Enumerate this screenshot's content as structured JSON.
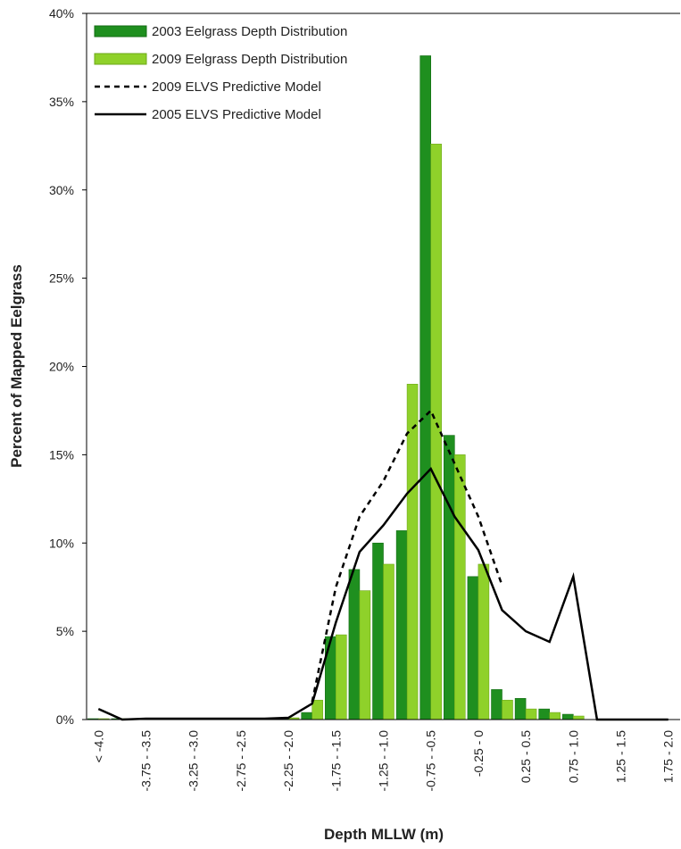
{
  "chart_data": {
    "type": "bar",
    "x_label": "Depth MLLW (m)",
    "y_label": "Percent of Mapped Eelgrass",
    "categories": [
      "< -4.0",
      null,
      "-3.75 - -3.5",
      null,
      "-3.25 - -3.0",
      null,
      "-2.75 - -2.5",
      null,
      "-2.25 - -2.0",
      null,
      "-1.75 - -1.5",
      null,
      "-1.25 - -1.0",
      null,
      "-0.75 - -0.5",
      null,
      "-0.25 - 0",
      null,
      "0.25 - 0.5",
      null,
      "0.75 - 1.0",
      null,
      "1.25 - 1.5",
      null,
      "1.75 - 2.0"
    ],
    "series": [
      {
        "name": "2003 Eelgrass Depth Distribution",
        "kind": "bar",
        "color": "#1f8f1f",
        "values": [
          0.05,
          0.05,
          0.05,
          0.05,
          0.05,
          0.05,
          0.05,
          0.05,
          0.1,
          0.4,
          4.7,
          8.5,
          10.0,
          10.7,
          37.6,
          16.1,
          8.1,
          1.7,
          1.2,
          0.6,
          0.3,
          0,
          0,
          0,
          0
        ]
      },
      {
        "name": "2009 Eelgrass Depth Distribution",
        "kind": "bar",
        "color": "#8fd12a",
        "values": [
          0.05,
          0.05,
          0.05,
          0.05,
          0.05,
          0.05,
          0.05,
          0.05,
          0.1,
          1.1,
          4.8,
          7.3,
          8.8,
          19.0,
          32.6,
          15.0,
          8.8,
          1.1,
          0.6,
          0.4,
          0.2,
          0,
          0,
          0,
          0
        ]
      },
      {
        "name": "2009 ELVS Predictive Model",
        "kind": "line",
        "dash": true,
        "color": "#000000",
        "values": [
          null,
          null,
          null,
          null,
          null,
          null,
          null,
          null,
          null,
          1.0,
          7.5,
          11.5,
          13.5,
          16.2,
          17.5,
          14.5,
          11.5,
          7.6,
          null,
          null,
          null,
          null,
          null,
          null,
          null
        ]
      },
      {
        "name": "2005 ELVS Predictive Model",
        "kind": "line",
        "dash": false,
        "color": "#000000",
        "values": [
          0.6,
          0,
          0.05,
          0.05,
          0.05,
          0.05,
          0.05,
          0.05,
          0.1,
          0.9,
          5.5,
          9.5,
          11.0,
          12.8,
          14.2,
          11.5,
          9.6,
          6.2,
          5.0,
          4.4,
          8.1,
          0,
          0,
          0,
          0
        ]
      }
    ],
    "ylim": [
      0,
      40
    ],
    "yticks": [
      {
        "value": 0,
        "label": "0%"
      },
      {
        "value": 5,
        "label": "5%"
      },
      {
        "value": 10,
        "label": "10%"
      },
      {
        "value": 15,
        "label": "15%"
      },
      {
        "value": 20,
        "label": "20%"
      },
      {
        "value": 25,
        "label": "25%"
      },
      {
        "value": 30,
        "label": "30%"
      },
      {
        "value": 35,
        "label": "35%"
      },
      {
        "value": 40,
        "label": "40%"
      }
    ],
    "grid": false,
    "legend": "upper left"
  }
}
